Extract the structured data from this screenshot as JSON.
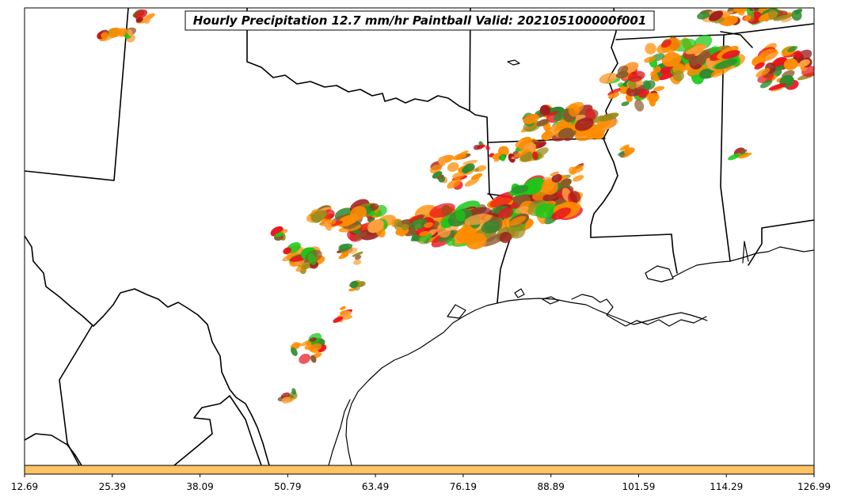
{
  "title": "Hourly Precipitation 12.7 mm/hr Paintball Valid: 202105100000f001",
  "colorbar": {
    "fill_color": "#ffc466",
    "ticks": [
      "12.69",
      "25.39",
      "38.09",
      "50.79",
      "63.49",
      "76.19",
      "88.89",
      "101.59",
      "114.29",
      "126.99"
    ]
  },
  "palette": {
    "orange": "#ff8c00",
    "light_orange": "#ffa040",
    "red": "#e8141e",
    "dark_red": "#a01e1e",
    "olive": "#9a8c1e",
    "brown": "#8b5a2b",
    "green": "#19c819",
    "dark_green": "#2e8b2e"
  }
}
